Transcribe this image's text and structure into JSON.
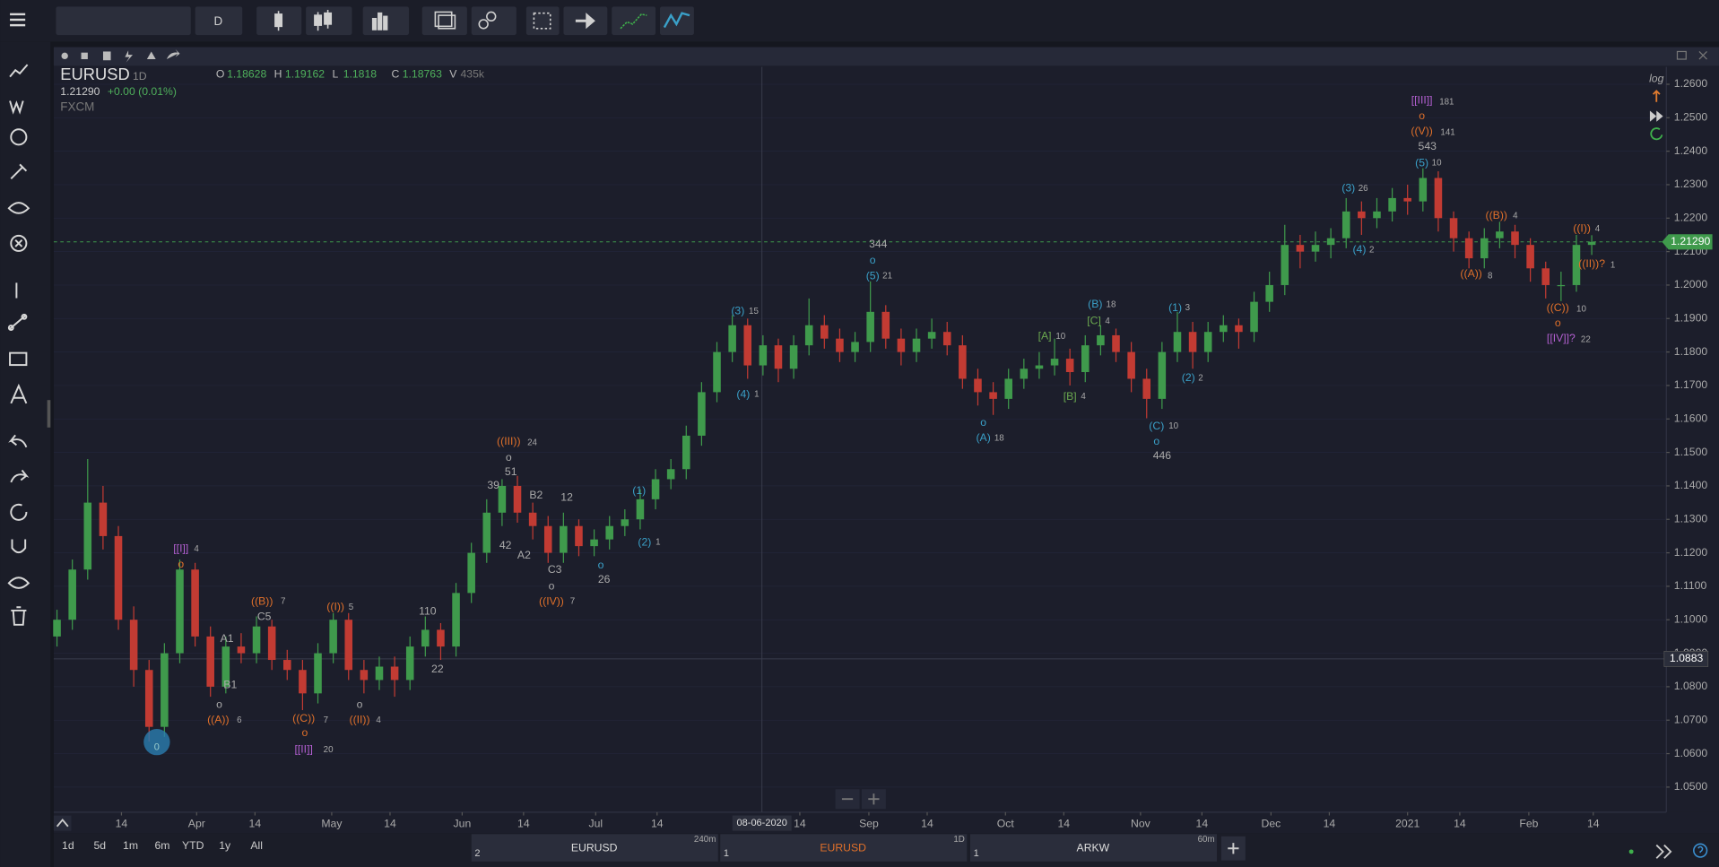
{
  "toolbar": {
    "interval": "D"
  },
  "chart_header": {
    "symbol": "EURUSD",
    "interval": "1D",
    "open_label": "O",
    "open": 1.18628,
    "high_label": "H",
    "high": 1.19162,
    "low_label": "L",
    "low": 1.1818,
    "close_label": "C",
    "close": 1.18763,
    "volume_label": "V",
    "volume": "435k",
    "last": "1.21290",
    "change": "+0.00 (0.01%)",
    "source": "FXCM",
    "log": "log"
  },
  "chart_data": {
    "type": "candlestick",
    "ohlc": [
      [
        1.095,
        1.103,
        1.092,
        1.1
      ],
      [
        1.1,
        1.118,
        1.097,
        1.115
      ],
      [
        1.115,
        1.148,
        1.112,
        1.135
      ],
      [
        1.135,
        1.14,
        1.121,
        1.125
      ],
      [
        1.125,
        1.128,
        1.097,
        1.1
      ],
      [
        1.1,
        1.104,
        1.08,
        1.085
      ],
      [
        1.085,
        1.088,
        1.0636,
        1.068
      ],
      [
        1.068,
        1.093,
        1.065,
        1.09
      ],
      [
        1.09,
        1.118,
        1.087,
        1.115
      ],
      [
        1.115,
        1.117,
        1.092,
        1.095
      ],
      [
        1.095,
        1.098,
        1.077,
        1.08
      ],
      [
        1.08,
        1.095,
        1.078,
        1.092
      ],
      [
        1.092,
        1.096,
        1.087,
        1.09
      ],
      [
        1.09,
        1.101,
        1.087,
        1.098
      ],
      [
        1.098,
        1.1,
        1.085,
        1.088
      ],
      [
        1.088,
        1.091,
        1.082,
        1.085
      ],
      [
        1.085,
        1.088,
        1.073,
        1.078
      ],
      [
        1.078,
        1.093,
        1.075,
        1.09
      ],
      [
        1.09,
        1.102,
        1.087,
        1.1
      ],
      [
        1.1,
        1.102,
        1.082,
        1.085
      ],
      [
        1.085,
        1.088,
        1.078,
        1.082
      ],
      [
        1.082,
        1.089,
        1.079,
        1.086
      ],
      [
        1.086,
        1.089,
        1.077,
        1.082
      ],
      [
        1.082,
        1.095,
        1.079,
        1.092
      ],
      [
        1.092,
        1.101,
        1.089,
        1.097
      ],
      [
        1.097,
        1.099,
        1.088,
        1.092
      ],
      [
        1.092,
        1.111,
        1.089,
        1.108
      ],
      [
        1.108,
        1.123,
        1.105,
        1.12
      ],
      [
        1.12,
        1.136,
        1.117,
        1.132
      ],
      [
        1.132,
        1.142,
        1.128,
        1.14
      ],
      [
        1.14,
        1.143,
        1.129,
        1.132
      ],
      [
        1.132,
        1.135,
        1.124,
        1.128
      ],
      [
        1.128,
        1.131,
        1.117,
        1.12
      ],
      [
        1.12,
        1.132,
        1.117,
        1.128
      ],
      [
        1.128,
        1.13,
        1.119,
        1.122
      ],
      [
        1.122,
        1.127,
        1.119,
        1.124
      ],
      [
        1.124,
        1.131,
        1.121,
        1.128
      ],
      [
        1.128,
        1.133,
        1.125,
        1.13
      ],
      [
        1.13,
        1.139,
        1.127,
        1.136
      ],
      [
        1.136,
        1.145,
        1.133,
        1.142
      ],
      [
        1.142,
        1.148,
        1.139,
        1.145
      ],
      [
        1.145,
        1.158,
        1.142,
        1.155
      ],
      [
        1.155,
        1.171,
        1.152,
        1.168
      ],
      [
        1.168,
        1.183,
        1.165,
        1.18
      ],
      [
        1.18,
        1.191,
        1.177,
        1.188
      ],
      [
        1.188,
        1.19,
        1.172,
        1.176
      ],
      [
        1.176,
        1.185,
        1.173,
        1.182
      ],
      [
        1.182,
        1.184,
        1.171,
        1.175
      ],
      [
        1.175,
        1.185,
        1.172,
        1.182
      ],
      [
        1.182,
        1.196,
        1.179,
        1.188
      ],
      [
        1.188,
        1.191,
        1.181,
        1.184
      ],
      [
        1.184,
        1.187,
        1.177,
        1.18
      ],
      [
        1.18,
        1.186,
        1.177,
        1.183
      ],
      [
        1.183,
        1.2011,
        1.18,
        1.192
      ],
      [
        1.192,
        1.194,
        1.181,
        1.184
      ],
      [
        1.184,
        1.187,
        1.176,
        1.18
      ],
      [
        1.18,
        1.187,
        1.177,
        1.184
      ],
      [
        1.184,
        1.19,
        1.181,
        1.186
      ],
      [
        1.186,
        1.189,
        1.179,
        1.182
      ],
      [
        1.182,
        1.185,
        1.169,
        1.172
      ],
      [
        1.172,
        1.175,
        1.164,
        1.168
      ],
      [
        1.168,
        1.171,
        1.1612,
        1.166
      ],
      [
        1.166,
        1.175,
        1.163,
        1.172
      ],
      [
        1.172,
        1.178,
        1.169,
        1.175
      ],
      [
        1.175,
        1.18,
        1.172,
        1.176
      ],
      [
        1.176,
        1.184,
        1.173,
        1.178
      ],
      [
        1.178,
        1.181,
        1.17,
        1.174
      ],
      [
        1.174,
        1.185,
        1.171,
        1.182
      ],
      [
        1.182,
        1.188,
        1.179,
        1.185
      ],
      [
        1.185,
        1.187,
        1.177,
        1.18
      ],
      [
        1.18,
        1.183,
        1.168,
        1.172
      ],
      [
        1.172,
        1.175,
        1.1602,
        1.166
      ],
      [
        1.166,
        1.183,
        1.163,
        1.18
      ],
      [
        1.18,
        1.192,
        1.177,
        1.186
      ],
      [
        1.186,
        1.189,
        1.175,
        1.18
      ],
      [
        1.18,
        1.189,
        1.177,
        1.186
      ],
      [
        1.186,
        1.191,
        1.183,
        1.188
      ],
      [
        1.188,
        1.19,
        1.181,
        1.186
      ],
      [
        1.186,
        1.198,
        1.183,
        1.195
      ],
      [
        1.195,
        1.204,
        1.192,
        1.2
      ],
      [
        1.2,
        1.218,
        1.197,
        1.212
      ],
      [
        1.212,
        1.215,
        1.205,
        1.21
      ],
      [
        1.21,
        1.216,
        1.207,
        1.212
      ],
      [
        1.212,
        1.217,
        1.208,
        1.214
      ],
      [
        1.214,
        1.226,
        1.211,
        1.222
      ],
      [
        1.222,
        1.225,
        1.215,
        1.22
      ],
      [
        1.22,
        1.226,
        1.217,
        1.222
      ],
      [
        1.222,
        1.229,
        1.219,
        1.226
      ],
      [
        1.226,
        1.23,
        1.221,
        1.225
      ],
      [
        1.225,
        1.2349,
        1.222,
        1.232
      ],
      [
        1.232,
        1.234,
        1.216,
        1.22
      ],
      [
        1.22,
        1.222,
        1.21,
        1.214
      ],
      [
        1.214,
        1.216,
        1.205,
        1.208
      ],
      [
        1.208,
        1.217,
        1.205,
        1.214
      ],
      [
        1.214,
        1.2189,
        1.211,
        1.216
      ],
      [
        1.216,
        1.218,
        1.208,
        1.212
      ],
      [
        1.212,
        1.214,
        1.201,
        1.205
      ],
      [
        1.205,
        1.207,
        1.196,
        1.2
      ],
      [
        1.2,
        1.204,
        1.1952,
        1.2
      ],
      [
        1.2,
        1.215,
        1.198,
        1.212
      ],
      [
        1.212,
        1.2149,
        1.209,
        1.2129
      ]
    ],
    "colors": {
      "up": "#3f9a4c",
      "down": "#c23b33"
    },
    "xlim": [
      -0.21,
      104.86
    ],
    "xticks": [
      {
        "value": 4.2,
        "label": "14"
      },
      {
        "value": 9.1,
        "label": "Apr"
      },
      {
        "value": 12.9,
        "label": "14"
      },
      {
        "value": 17.9,
        "label": "May"
      },
      {
        "value": 21.7,
        "label": "14"
      },
      {
        "value": 26.4,
        "label": "Jun"
      },
      {
        "value": 30.4,
        "label": "14"
      },
      {
        "value": 35.1,
        "label": "Jul"
      },
      {
        "value": 39.1,
        "label": "14"
      },
      {
        "value": 48.4,
        "label": "14"
      },
      {
        "value": 52.9,
        "label": "Sep"
      },
      {
        "value": 56.7,
        "label": "14"
      },
      {
        "value": 61.8,
        "label": "Oct"
      },
      {
        "value": 65.6,
        "label": "14"
      },
      {
        "value": 70.6,
        "label": "Nov"
      },
      {
        "value": 74.6,
        "label": "14"
      },
      {
        "value": 79.1,
        "label": "Dec"
      },
      {
        "value": 82.9,
        "label": "14"
      },
      {
        "value": 88,
        "label": "2021"
      },
      {
        "value": 91.4,
        "label": "14"
      },
      {
        "value": 95.9,
        "label": "Feb"
      },
      {
        "value": 100.1,
        "label": "14"
      }
    ],
    "ylim": [
      1.0425,
      1.2652
    ],
    "yticks": [
      {
        "value": 1.05,
        "label": "1.0500"
      },
      {
        "value": 1.06,
        "label": "1.0600"
      },
      {
        "value": 1.07,
        "label": "1.0700"
      },
      {
        "value": 1.08,
        "label": "1.0800"
      },
      {
        "value": 1.09,
        "label": "1.0900"
      },
      {
        "value": 1.1,
        "label": "1.1000"
      },
      {
        "value": 1.11,
        "label": "1.1100"
      },
      {
        "value": 1.12,
        "label": "1.1200"
      },
      {
        "value": 1.13,
        "label": "1.1300"
      },
      {
        "value": 1.14,
        "label": "1.1400"
      },
      {
        "value": 1.15,
        "label": "1.1500"
      },
      {
        "value": 1.16,
        "label": "1.1600"
      },
      {
        "value": 1.17,
        "label": "1.1700"
      },
      {
        "value": 1.18,
        "label": "1.1800"
      },
      {
        "value": 1.19,
        "label": "1.1900"
      },
      {
        "value": 1.2,
        "label": "1.2000"
      },
      {
        "value": 1.21,
        "label": "1.2100"
      },
      {
        "value": 1.22,
        "label": "1.2200"
      },
      {
        "value": 1.23,
        "label": "1.2300"
      },
      {
        "value": 1.24,
        "label": "1.2400"
      },
      {
        "value": 1.25,
        "label": "1.2500"
      },
      {
        "value": 1.26,
        "label": "1.2600"
      }
    ],
    "grid": true,
    "last_price": {
      "value": 1.2129,
      "label": "1.21290"
    },
    "crosshair": {
      "price": {
        "value": 1.0883,
        "label": "1.0883"
      },
      "date": "08-06-2020"
    },
    "start_marker": "0",
    "annotations": [
      "[[I]]",
      "4",
      "o",
      "((B))",
      "7",
      "C5",
      "A1",
      "B1",
      "o",
      "((A))",
      "6",
      "((C))",
      "7",
      "o",
      "[[II]]",
      "20",
      "((I))",
      "5",
      "o",
      "((II))",
      "4",
      "110",
      "22",
      "((III))",
      "24",
      "o",
      "51",
      "39",
      "42",
      "B2",
      "12",
      "A2",
      "C3",
      "o",
      "((IV))",
      "7",
      "o",
      "26",
      "(1)",
      "(2)",
      "1",
      "(3)",
      "15",
      "(4)",
      "1",
      "344",
      "o",
      "(5)",
      "21",
      "o",
      "(A)",
      "18",
      "[A]",
      "10",
      "[B]",
      "4",
      "(B)",
      "18",
      "[C]",
      "4",
      "(1)",
      "3",
      "(2)",
      "2",
      "(C)",
      "10",
      "o",
      "446",
      "(3)",
      "26",
      "(4)",
      "2",
      "[[III]]",
      "181",
      "o",
      "((V))",
      "141",
      "543",
      "(5)",
      "10",
      "((B))",
      "4",
      "((A))",
      "8",
      "((I))",
      "4",
      "((II))?",
      "1",
      "((C))",
      "10",
      "o",
      "[[IV]]?",
      "22"
    ]
  },
  "range_buttons": [
    "1d",
    "5d",
    "1m",
    "6m",
    "YTD",
    "1y",
    "All"
  ],
  "tabs": [
    {
      "symbol": "EURUSD",
      "interval": "240m",
      "number": 2
    },
    {
      "symbol": "EURUSD",
      "interval": "1D",
      "number": 1
    },
    {
      "symbol": "ARKW",
      "interval": "60m",
      "number": 1
    }
  ]
}
